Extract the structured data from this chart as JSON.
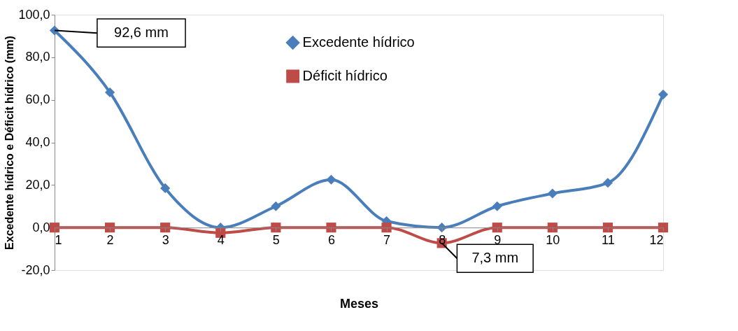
{
  "chart_data": {
    "type": "line",
    "xlabel": "Meses",
    "ylabel": "Excedente hídrico e Déficit hídrico (mm)",
    "x": [
      1,
      2,
      3,
      4,
      5,
      6,
      7,
      8,
      9,
      10,
      11,
      12
    ],
    "xlim": [
      1,
      12
    ],
    "xticks": [
      1,
      2,
      3,
      4,
      5,
      6,
      7,
      8,
      9,
      10,
      11,
      12
    ],
    "ylim": [
      -20,
      100
    ],
    "yticks": [
      {
        "value": -20,
        "label": "-20,0"
      },
      {
        "value": 0,
        "label": "0,0"
      },
      {
        "value": 20,
        "label": "20,0"
      },
      {
        "value": 40,
        "label": "40,0"
      },
      {
        "value": 60,
        "label": "60,0"
      },
      {
        "value": 80,
        "label": "80,0"
      },
      {
        "value": 100,
        "label": "100,0"
      }
    ],
    "series": [
      {
        "name": "Excedente hídrico",
        "color": "#4a7ebb",
        "marker": "diamond",
        "values": [
          92.6,
          63.5,
          18.5,
          0,
          10,
          22.5,
          3,
          0,
          10,
          16,
          21,
          62.5
        ]
      },
      {
        "name": "Déficit hídrico",
        "color": "#be4b48",
        "marker": "square",
        "values": [
          0,
          0,
          0,
          -2.5,
          0,
          0,
          0,
          -7.3,
          0,
          0,
          0,
          0
        ]
      }
    ],
    "annotations": [
      {
        "text": "92,6 mm",
        "x": 1,
        "y": 92.6
      },
      {
        "text": "7,3 mm",
        "x": 8,
        "y": -7.3
      }
    ],
    "legend": "top",
    "grid": false,
    "line_style": "solid"
  }
}
